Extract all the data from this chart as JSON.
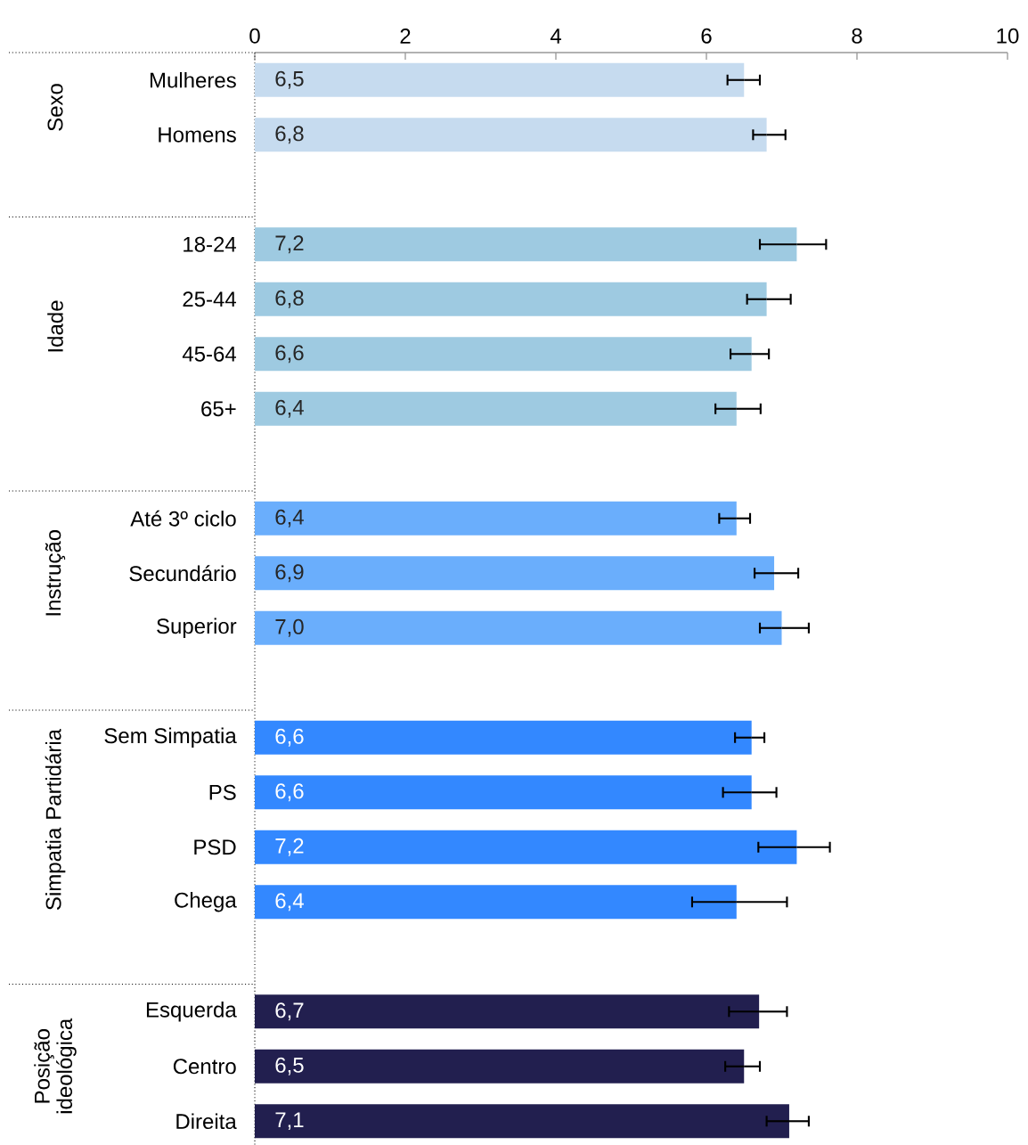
{
  "chart_data": {
    "type": "bar",
    "orientation": "horizontal",
    "xlim": [
      0,
      10
    ],
    "xticks": [
      0,
      2,
      4,
      6,
      8,
      10
    ],
    "grid": false,
    "annotations": [
      "Sexo",
      "Idade",
      "Instrução",
      "Simpatia Partidária",
      "Posição ideológica"
    ],
    "categories": [
      "Mulheres",
      "Homens",
      null,
      "18-24",
      "25-44",
      "45-64",
      "65+",
      null,
      "Até 3º ciclo",
      "Secundário",
      "Superior",
      null,
      "Sem Simpatia",
      "PS",
      "PSD",
      "Chega",
      null,
      "Esquerda",
      "Centro",
      "Direita"
    ],
    "series": [
      {
        "color": "#c6dbef",
        "values": [
          6.5,
          6.8,
          null,
          null,
          null,
          null,
          null,
          null,
          null,
          null,
          null,
          null,
          null,
          null,
          null,
          null,
          null,
          null,
          null,
          null
        ],
        "errors": [
          [
            6.28,
            6.71
          ],
          [
            6.62,
            7.05
          ],
          null,
          null,
          null,
          null,
          null,
          null,
          null,
          null,
          null,
          null,
          null,
          null,
          null,
          null,
          null,
          null,
          null,
          null
        ],
        "value_labels": [
          "6,5",
          "6,8",
          null,
          null,
          null,
          null,
          null,
          null,
          null,
          null,
          null,
          null,
          null,
          null,
          null,
          null,
          null,
          null,
          null,
          null
        ]
      },
      {
        "color": "#9ecae1",
        "values": [
          null,
          null,
          null,
          7.2,
          6.8,
          6.6,
          6.4,
          null,
          null,
          null,
          null,
          null,
          null,
          null,
          null,
          null,
          null,
          null,
          null,
          null
        ],
        "errors": [
          null,
          null,
          null,
          [
            6.71,
            7.59
          ],
          [
            6.54,
            7.12
          ],
          [
            6.32,
            6.83
          ],
          [
            6.12,
            6.72
          ],
          null,
          null,
          null,
          null,
          null,
          null,
          null,
          null,
          null,
          null,
          null,
          null,
          null
        ],
        "value_labels": [
          null,
          null,
          null,
          "7,2",
          "6,8",
          "6,6",
          "6,4",
          null,
          null,
          null,
          null,
          null,
          null,
          null,
          null,
          null,
          null,
          null,
          null,
          null
        ]
      },
      {
        "color": "#6aaefc",
        "values": [
          null,
          null,
          null,
          null,
          null,
          null,
          null,
          null,
          6.4,
          6.9,
          7.0,
          null,
          null,
          null,
          null,
          null,
          null,
          null,
          null,
          null
        ],
        "errors": [
          null,
          null,
          null,
          null,
          null,
          null,
          null,
          null,
          [
            6.17,
            6.58
          ],
          [
            6.64,
            7.22
          ],
          [
            6.71,
            7.36
          ],
          null,
          null,
          null,
          null,
          null,
          null,
          null,
          null,
          null
        ],
        "value_labels": [
          null,
          null,
          null,
          null,
          null,
          null,
          null,
          null,
          "6,4",
          "6,9",
          "7,0",
          null,
          null,
          null,
          null,
          null,
          null,
          null,
          null,
          null
        ]
      },
      {
        "color": "#3388ff",
        "values": [
          null,
          null,
          null,
          null,
          null,
          null,
          null,
          null,
          null,
          null,
          null,
          null,
          6.6,
          6.6,
          7.2,
          6.4,
          null,
          null,
          null,
          null
        ],
        "errors": [
          null,
          null,
          null,
          null,
          null,
          null,
          null,
          null,
          null,
          null,
          null,
          null,
          [
            6.38,
            6.77
          ],
          [
            6.22,
            6.93
          ],
          [
            6.69,
            7.64
          ],
          [
            5.81,
            7.07
          ],
          null,
          null,
          null,
          null
        ],
        "value_labels": [
          null,
          null,
          null,
          null,
          null,
          null,
          null,
          null,
          null,
          null,
          null,
          null,
          "6,6",
          "6,6",
          "7,2",
          "6,4",
          null,
          null,
          null,
          null
        ]
      },
      {
        "color": "#221f4f",
        "values": [
          null,
          null,
          null,
          null,
          null,
          null,
          null,
          null,
          null,
          null,
          null,
          null,
          null,
          null,
          null,
          null,
          null,
          6.7,
          6.5,
          7.1
        ],
        "errors": [
          null,
          null,
          null,
          null,
          null,
          null,
          null,
          null,
          null,
          null,
          null,
          null,
          null,
          null,
          null,
          null,
          null,
          [
            6.3,
            7.07
          ],
          [
            6.25,
            6.71
          ],
          [
            6.8,
            7.36
          ]
        ],
        "value_labels": [
          null,
          null,
          null,
          null,
          null,
          null,
          null,
          null,
          null,
          null,
          null,
          null,
          null,
          null,
          null,
          null,
          null,
          "6,7",
          "6,5",
          "7,1"
        ]
      }
    ]
  }
}
